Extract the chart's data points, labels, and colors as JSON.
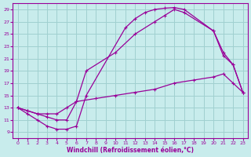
{
  "xlabel": "Windchill (Refroidissement éolien,°C)",
  "bg_color": "#c8ecec",
  "grid_color": "#a0d0d0",
  "line_color": "#990099",
  "xlim": [
    -0.5,
    23.5
  ],
  "ylim": [
    8,
    30
  ],
  "xticks": [
    0,
    1,
    2,
    3,
    4,
    5,
    6,
    7,
    8,
    9,
    10,
    11,
    12,
    13,
    14,
    15,
    16,
    17,
    18,
    19,
    20,
    21,
    22,
    23
  ],
  "yticks": [
    9,
    11,
    13,
    15,
    17,
    19,
    21,
    23,
    25,
    27,
    29
  ],
  "line1_x": [
    0,
    1,
    2,
    3,
    4,
    5,
    6,
    7,
    11,
    12,
    13,
    14,
    15,
    16,
    17,
    20,
    21,
    22,
    23
  ],
  "line1_y": [
    13,
    12,
    11,
    10,
    9.5,
    9.5,
    10,
    15,
    26,
    27.5,
    28.5,
    29,
    29.2,
    29.3,
    29,
    25.5,
    21.5,
    20,
    15.5
  ],
  "line2_x": [
    0,
    1,
    2,
    3,
    4,
    5,
    6,
    7,
    10,
    12,
    14,
    15,
    16,
    17,
    20,
    21,
    22,
    23
  ],
  "line2_y": [
    13,
    12.5,
    12,
    11.5,
    11,
    11,
    14,
    19,
    22,
    25,
    27,
    28,
    29,
    28.5,
    25.5,
    22,
    20,
    15.5
  ],
  "line3_x": [
    0,
    1,
    2,
    3,
    4,
    5,
    6,
    8,
    10,
    12,
    14,
    16,
    18,
    20,
    21,
    22,
    23
  ],
  "line3_y": [
    13,
    12.5,
    12,
    12,
    12,
    13,
    14,
    14.5,
    15,
    15.5,
    16,
    17,
    17.5,
    18,
    18.5,
    17,
    15.5
  ]
}
